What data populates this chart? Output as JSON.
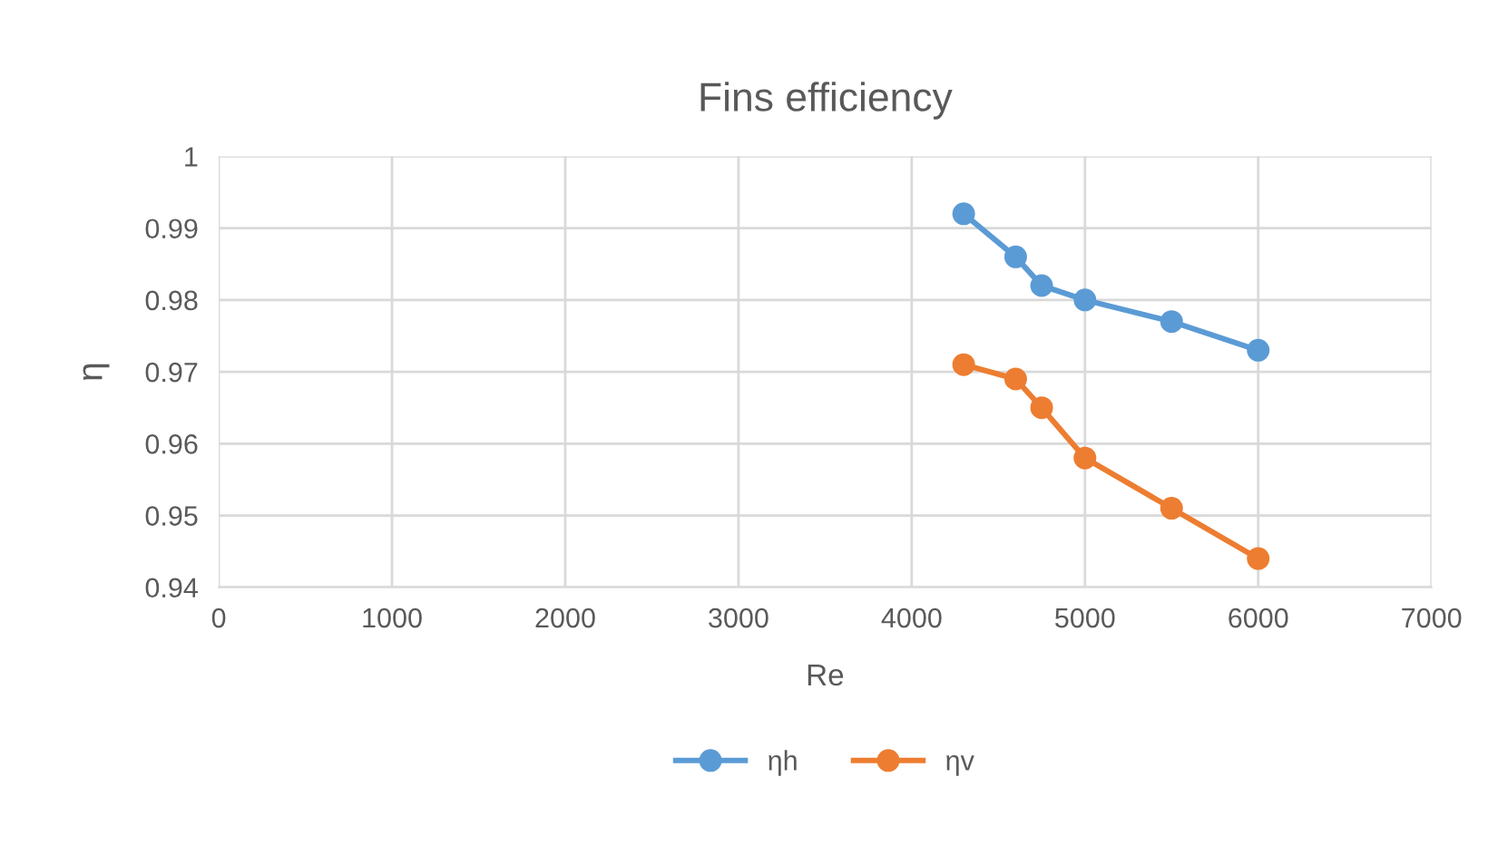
{
  "chart_data": {
    "type": "line",
    "title": "Fins efficiency",
    "xlabel": "Re",
    "ylabel": "η",
    "x": [
      4300,
      4600,
      4750,
      5000,
      5500,
      6000
    ],
    "series": [
      {
        "name": "ηh",
        "color": "#5b9bd5",
        "values": [
          0.992,
          0.986,
          0.982,
          0.98,
          0.977,
          0.973
        ]
      },
      {
        "name": "ηv",
        "color": "#ed7d31",
        "values": [
          0.971,
          0.969,
          0.965,
          0.958,
          0.951,
          0.944
        ]
      }
    ],
    "xlim": [
      0,
      7000
    ],
    "xticks": [
      0,
      1000,
      2000,
      3000,
      4000,
      5000,
      6000,
      7000
    ],
    "ylim": [
      0.94,
      1
    ],
    "yticks": [
      0.94,
      0.95,
      0.96,
      0.97,
      0.98,
      0.99,
      1
    ],
    "grid": true,
    "legend": "bottom",
    "marker": "circle",
    "line_style": "solid"
  }
}
